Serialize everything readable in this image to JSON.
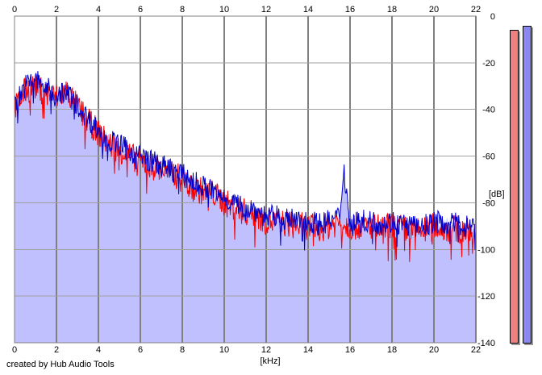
{
  "chart_data": {
    "type": "area",
    "xlabel": "[kHz]",
    "ylabel": "[dB]",
    "xlim": [
      0,
      22
    ],
    "ylim": [
      -140,
      0
    ],
    "x_ticks": [
      "0",
      "2",
      "4",
      "6",
      "8",
      "10",
      "12",
      "14",
      "16",
      "18",
      "20",
      "22"
    ],
    "y_ticks": [
      "0",
      "-20",
      "-40",
      "-60",
      "-80",
      "-100",
      "-120",
      "-140"
    ],
    "grid": true,
    "fill_color": "#c0c0ff",
    "series": [
      {
        "color": "#ff0000",
        "x": [
          0,
          0.5,
          1,
          1.5,
          2,
          2.5,
          3,
          3.5,
          4,
          4.5,
          5,
          5.5,
          6,
          6.5,
          7,
          7.5,
          8,
          8.5,
          9,
          9.5,
          10,
          10.5,
          11,
          11.5,
          12,
          12.5,
          13,
          13.5,
          14,
          14.5,
          15,
          15.5,
          16,
          16.5,
          17,
          17.5,
          18,
          18.5,
          19,
          19.5,
          20,
          20.5,
          21,
          21.5,
          22
        ],
        "values": [
          -40,
          -32,
          -30,
          -33,
          -35,
          -32,
          -39,
          -45,
          -50,
          -55,
          -57,
          -60,
          -62,
          -64,
          -66,
          -67,
          -70,
          -74,
          -75,
          -76,
          -80,
          -82,
          -84,
          -85,
          -88,
          -88,
          -89,
          -90,
          -90,
          -91,
          -90,
          -88,
          -90,
          -90,
          -90,
          -91,
          -90,
          -91,
          -92,
          -92,
          -90,
          -91,
          -91,
          -92,
          -93
        ]
      },
      {
        "color": "#0000cc",
        "x": [
          0,
          0.5,
          1,
          1.5,
          2,
          2.5,
          3,
          3.5,
          4,
          4.5,
          5,
          5.5,
          6,
          6.5,
          7,
          7.5,
          8,
          8.5,
          9,
          9.5,
          10,
          10.5,
          11,
          11.5,
          12,
          12.5,
          13,
          13.5,
          14,
          14.5,
          15,
          15.5,
          15.7,
          16,
          16.5,
          17,
          17.5,
          18,
          18.5,
          19,
          19.5,
          20,
          20.5,
          21,
          21.5,
          22
        ],
        "values": [
          -38,
          -30,
          -27,
          -31,
          -33,
          -33,
          -38,
          -44,
          -49,
          -53,
          -55,
          -58,
          -60,
          -62,
          -64,
          -66,
          -68,
          -71,
          -73,
          -75,
          -78,
          -80,
          -82,
          -83,
          -86,
          -86,
          -87,
          -88,
          -88,
          -89,
          -88,
          -86,
          -65,
          -88,
          -88,
          -88,
          -89,
          -88,
          -89,
          -90,
          -90,
          -88,
          -89,
          -89,
          -90,
          -90
        ]
      }
    ]
  },
  "meters": {
    "left_color": "#f08080",
    "right_color": "#8888ee"
  },
  "credit": "created by Hub Audio Tools"
}
